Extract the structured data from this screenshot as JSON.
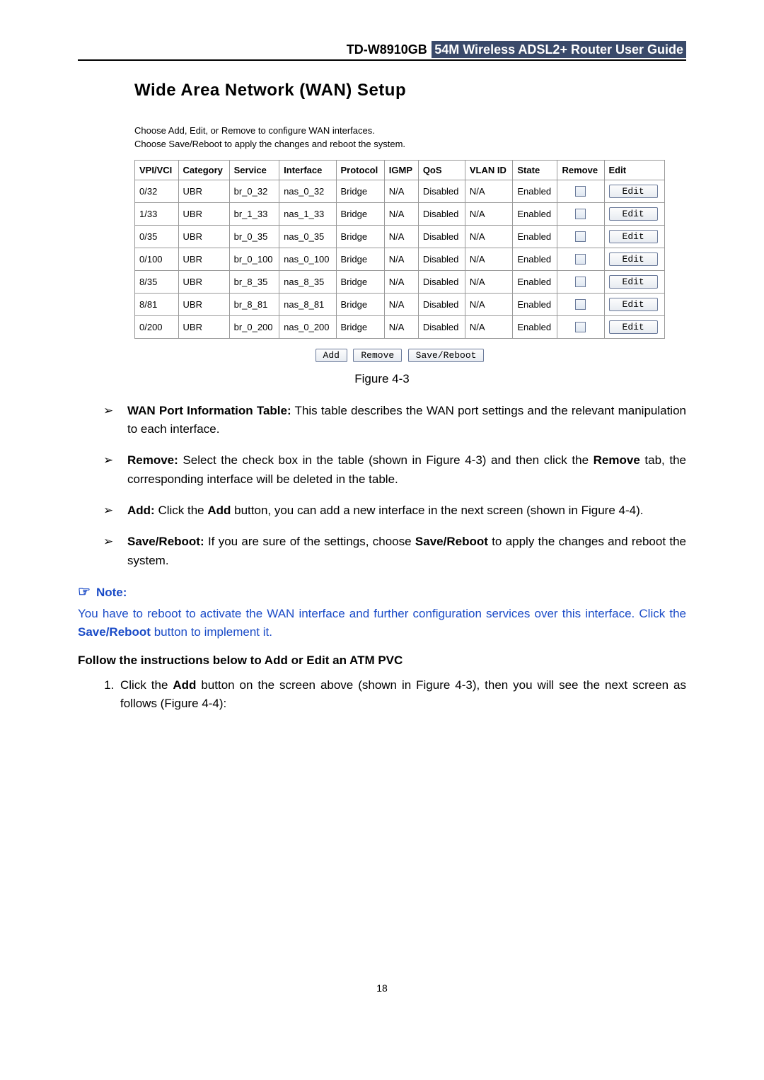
{
  "header": {
    "model": "TD-W8910GB",
    "title": "54M Wireless ADSL2+ Router User Guide"
  },
  "wan": {
    "title": "Wide Area Network (WAN) Setup",
    "desc1": "Choose Add, Edit, or Remove to configure WAN interfaces.",
    "desc2": "Choose Save/Reboot to apply the changes and reboot the system.",
    "headers": {
      "vpivci": "VPI/VCI",
      "category": "Category",
      "service": "Service",
      "interface": "Interface",
      "protocol": "Protocol",
      "igmp": "IGMP",
      "qos": "QoS",
      "vlanid": "VLAN ID",
      "state": "State",
      "remove": "Remove",
      "edit": "Edit"
    },
    "rows": [
      {
        "vpivci": "0/32",
        "category": "UBR",
        "service": "br_0_32",
        "interface": "nas_0_32",
        "protocol": "Bridge",
        "igmp": "N/A",
        "qos": "Disabled",
        "vlanid": "N/A",
        "state": "Enabled",
        "edit": "Edit"
      },
      {
        "vpivci": "1/33",
        "category": "UBR",
        "service": "br_1_33",
        "interface": "nas_1_33",
        "protocol": "Bridge",
        "igmp": "N/A",
        "qos": "Disabled",
        "vlanid": "N/A",
        "state": "Enabled",
        "edit": "Edit"
      },
      {
        "vpivci": "0/35",
        "category": "UBR",
        "service": "br_0_35",
        "interface": "nas_0_35",
        "protocol": "Bridge",
        "igmp": "N/A",
        "qos": "Disabled",
        "vlanid": "N/A",
        "state": "Enabled",
        "edit": "Edit"
      },
      {
        "vpivci": "0/100",
        "category": "UBR",
        "service": "br_0_100",
        "interface": "nas_0_100",
        "protocol": "Bridge",
        "igmp": "N/A",
        "qos": "Disabled",
        "vlanid": "N/A",
        "state": "Enabled",
        "edit": "Edit"
      },
      {
        "vpivci": "8/35",
        "category": "UBR",
        "service": "br_8_35",
        "interface": "nas_8_35",
        "protocol": "Bridge",
        "igmp": "N/A",
        "qos": "Disabled",
        "vlanid": "N/A",
        "state": "Enabled",
        "edit": "Edit"
      },
      {
        "vpivci": "8/81",
        "category": "UBR",
        "service": "br_8_81",
        "interface": "nas_8_81",
        "protocol": "Bridge",
        "igmp": "N/A",
        "qos": "Disabled",
        "vlanid": "N/A",
        "state": "Enabled",
        "edit": "Edit"
      },
      {
        "vpivci": "0/200",
        "category": "UBR",
        "service": "br_0_200",
        "interface": "nas_0_200",
        "protocol": "Bridge",
        "igmp": "N/A",
        "qos": "Disabled",
        "vlanid": "N/A",
        "state": "Enabled",
        "edit": "Edit"
      }
    ],
    "buttons": {
      "add": "Add",
      "remove": "Remove",
      "savereboot": "Save/Reboot"
    }
  },
  "figure_caption": "Figure 4-3",
  "bullets": {
    "b1_bold": "WAN Port Information Table:",
    "b1_rest": " This table describes the WAN port settings and the relevant manipulation to each interface.",
    "b2_bold": "Remove:",
    "b2_mid": " Select the check box in the table (shown in Figure 4-3) and then click the ",
    "b2_bold2": "Remove",
    "b2_end": " tab, the corresponding interface will be deleted in the table.",
    "b3_bold": "Add:",
    "b3_mid": " Click the ",
    "b3_bold2": "Add",
    "b3_end": " button, you can add a new interface in the next screen (shown in Figure 4-4).",
    "b4_bold": "Save/Reboot:",
    "b4_mid": " If you are sure of the settings, choose ",
    "b4_bold2": "Save/Reboot",
    "b4_end": " to apply the changes and reboot the system."
  },
  "note": {
    "heading": "Note:",
    "body1": "You have to reboot to activate the WAN interface and further configuration services over this interface. Click the ",
    "body_bold": "Save/Reboot",
    "body2": " button to implement it."
  },
  "follow_heading": "Follow the instructions below to Add or Edit an ATM PVC",
  "step1": {
    "p1": "Click the ",
    "bold": "Add",
    "p2": " button on the screen above (shown in Figure 4-3), then you will see the next screen as follows (Figure 4-4):"
  },
  "page_number": "18"
}
